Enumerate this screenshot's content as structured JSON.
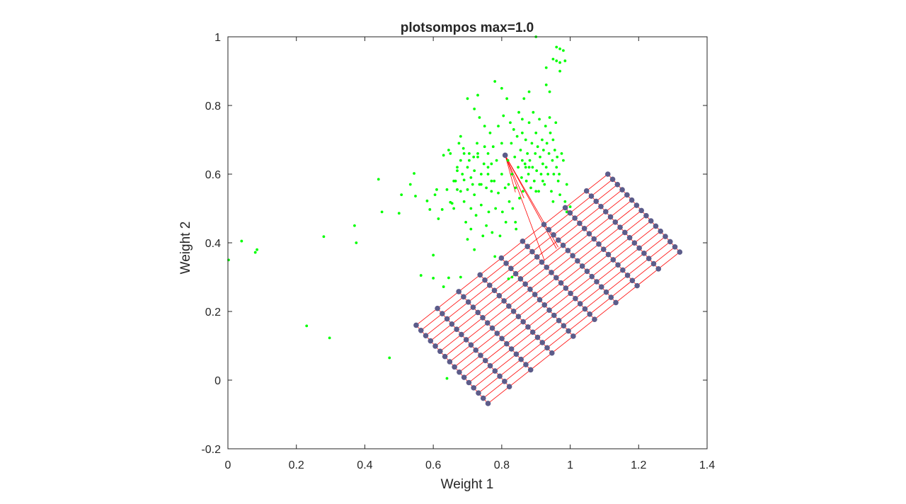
{
  "chart_data": {
    "type": "scatter",
    "title": "plotsompos max=1.0",
    "xlabel": "Weight 1",
    "ylabel": "Weight 2",
    "xlim": [
      0,
      1.4
    ],
    "ylim": [
      -0.2,
      1
    ],
    "xticks": [
      0,
      0.2,
      0.4,
      0.6,
      0.8,
      1,
      1.2,
      1.4
    ],
    "yticks": [
      -0.2,
      0,
      0.2,
      0.4,
      0.6,
      0.8,
      1
    ],
    "xtick_labels": [
      "0",
      "0.2",
      "0.4",
      "0.6",
      "0.8",
      "1",
      "1.2",
      "1.4"
    ],
    "ytick_labels": [
      "-0.2",
      "0",
      "0.2",
      "0.4",
      "0.6",
      "0.8",
      "1"
    ],
    "grid": false,
    "colors": {
      "samples": "#00ff00",
      "neurons": "#5c5c8a",
      "connections": "#ff0000",
      "axes": "#262626"
    },
    "samples": [
      [
        0.002,
        0.35
      ],
      [
        0.04,
        0.405
      ],
      [
        0.085,
        0.38
      ],
      [
        0.08,
        0.372
      ],
      [
        0.23,
        0.158
      ],
      [
        0.28,
        0.418
      ],
      [
        0.297,
        0.123
      ],
      [
        0.37,
        0.45
      ],
      [
        0.375,
        0.4
      ],
      [
        0.44,
        0.585
      ],
      [
        0.45,
        0.49
      ],
      [
        0.472,
        0.065
      ],
      [
        0.5,
        0.486
      ],
      [
        0.507,
        0.54
      ],
      [
        0.533,
        0.57
      ],
      [
        0.544,
        0.602
      ],
      [
        0.548,
        0.536
      ],
      [
        0.564,
        0.305
      ],
      [
        0.582,
        0.522
      ],
      [
        0.59,
        0.497
      ],
      [
        0.6,
        0.364
      ],
      [
        0.605,
        0.54
      ],
      [
        0.6,
        0.297
      ],
      [
        0.61,
        0.555
      ],
      [
        0.615,
        0.47
      ],
      [
        0.626,
        0.497
      ],
      [
        0.63,
        0.655
      ],
      [
        0.63,
        0.272
      ],
      [
        0.64,
        0.555
      ],
      [
        0.645,
        0.67
      ],
      [
        0.645,
        0.298
      ],
      [
        0.65,
        0.518
      ],
      [
        0.655,
        0.515
      ],
      [
        0.66,
        0.5
      ],
      [
        0.665,
        0.58
      ],
      [
        0.67,
        0.62
      ],
      [
        0.67,
        0.555
      ],
      [
        0.675,
        0.69
      ],
      [
        0.68,
        0.64
      ],
      [
        0.68,
        0.55
      ],
      [
        0.68,
        0.3
      ],
      [
        0.685,
        0.6
      ],
      [
        0.688,
        0.675
      ],
      [
        0.69,
        0.52
      ],
      [
        0.69,
        0.583
      ],
      [
        0.695,
        0.46
      ],
      [
        0.7,
        0.62
      ],
      [
        0.7,
        0.555
      ],
      [
        0.705,
        0.66
      ],
      [
        0.705,
        0.64
      ],
      [
        0.71,
        0.59
      ],
      [
        0.71,
        0.5
      ],
      [
        0.71,
        0.44
      ],
      [
        0.715,
        0.57
      ],
      [
        0.718,
        0.65
      ],
      [
        0.72,
        0.61
      ],
      [
        0.72,
        0.54
      ],
      [
        0.725,
        0.48
      ],
      [
        0.728,
        0.69
      ],
      [
        0.73,
        0.83
      ],
      [
        0.73,
        0.65
      ],
      [
        0.735,
        0.765
      ],
      [
        0.735,
        0.57
      ],
      [
        0.74,
        0.6
      ],
      [
        0.74,
        0.51
      ],
      [
        0.745,
        0.42
      ],
      [
        0.748,
        0.63
      ],
      [
        0.75,
        0.74
      ],
      [
        0.75,
        0.68
      ],
      [
        0.755,
        0.56
      ],
      [
        0.755,
        0.45
      ],
      [
        0.76,
        0.66
      ],
      [
        0.76,
        0.6
      ],
      [
        0.762,
        0.49
      ],
      [
        0.766,
        0.72
      ],
      [
        0.77,
        0.63
      ],
      [
        0.77,
        0.55
      ],
      [
        0.772,
        0.43
      ],
      [
        0.775,
        0.68
      ],
      [
        0.778,
        0.58
      ],
      [
        0.78,
        0.87
      ],
      [
        0.782,
        0.5
      ],
      [
        0.785,
        0.64
      ],
      [
        0.79,
        0.74
      ],
      [
        0.79,
        0.545
      ],
      [
        0.795,
        0.42
      ],
      [
        0.8,
        0.85
      ],
      [
        0.8,
        0.69
      ],
      [
        0.8,
        0.6
      ],
      [
        0.802,
        0.49
      ],
      [
        0.805,
        0.77
      ],
      [
        0.81,
        0.56
      ],
      [
        0.812,
        0.46
      ],
      [
        0.815,
        0.82
      ],
      [
        0.818,
        0.64
      ],
      [
        0.82,
        0.57
      ],
      [
        0.822,
        0.52
      ],
      [
        0.825,
        0.75
      ],
      [
        0.828,
        0.69
      ],
      [
        0.83,
        0.6
      ],
      [
        0.832,
        0.5
      ],
      [
        0.835,
        0.73
      ],
      [
        0.838,
        0.65
      ],
      [
        0.84,
        0.56
      ],
      [
        0.842,
        0.44
      ],
      [
        0.845,
        0.71
      ],
      [
        0.848,
        0.62
      ],
      [
        0.85,
        0.78
      ],
      [
        0.852,
        0.53
      ],
      [
        0.855,
        0.67
      ],
      [
        0.858,
        0.59
      ],
      [
        0.86,
        0.72
      ],
      [
        0.862,
        0.55
      ],
      [
        0.865,
        0.82
      ],
      [
        0.868,
        0.63
      ],
      [
        0.87,
        0.7
      ],
      [
        0.872,
        0.58
      ],
      [
        0.875,
        0.66
      ],
      [
        0.878,
        0.6
      ],
      [
        0.88,
        0.75
      ],
      [
        0.882,
        0.64
      ],
      [
        0.885,
        0.56
      ],
      [
        0.888,
        0.69
      ],
      [
        0.89,
        0.62
      ],
      [
        0.892,
        0.78
      ],
      [
        0.895,
        0.58
      ],
      [
        0.898,
        0.66
      ],
      [
        0.9,
        0.72
      ],
      [
        0.902,
        0.61
      ],
      [
        0.905,
        0.68
      ],
      [
        0.908,
        0.55
      ],
      [
        0.91,
        0.76
      ],
      [
        0.912,
        0.65
      ],
      [
        0.915,
        0.6
      ],
      [
        0.918,
        0.7
      ],
      [
        0.92,
        0.63
      ],
      [
        0.922,
        0.67
      ],
      [
        0.925,
        0.57
      ],
      [
        0.928,
        0.74
      ],
      [
        0.93,
        0.62
      ],
      [
        0.932,
        0.69
      ],
      [
        0.935,
        0.6
      ],
      [
        0.938,
        0.66
      ],
      [
        0.94,
        0.84
      ],
      [
        0.942,
        0.72
      ],
      [
        0.945,
        0.55
      ],
      [
        0.948,
        0.64
      ],
      [
        0.95,
        0.7
      ],
      [
        0.952,
        0.6
      ],
      [
        0.955,
        0.67
      ],
      [
        0.958,
        0.75
      ],
      [
        0.96,
        0.62
      ],
      [
        0.962,
        0.65
      ],
      [
        0.965,
        0.58
      ],
      [
        0.968,
        0.6
      ],
      [
        0.97,
        0.9
      ],
      [
        0.975,
        0.66
      ],
      [
        0.98,
        0.64
      ],
      [
        0.985,
        0.52
      ],
      [
        0.99,
        0.57
      ],
      [
        1.0,
        0.505
      ],
      [
        0.94,
        0.765
      ],
      [
        0.93,
        0.86
      ],
      [
        0.9,
        0.55
      ],
      [
        0.96,
        0.97
      ],
      [
        0.97,
        0.965
      ],
      [
        0.96,
        0.93
      ],
      [
        0.97,
        0.925
      ],
      [
        0.98,
        0.96
      ],
      [
        0.985,
        0.93
      ],
      [
        0.95,
        0.935
      ],
      [
        0.93,
        0.91
      ],
      [
        0.9,
        1.0
      ],
      [
        0.88,
        0.84
      ],
      [
        0.86,
        0.76
      ],
      [
        0.87,
        0.62
      ],
      [
        0.84,
        0.46
      ],
      [
        0.83,
        0.3
      ],
      [
        0.82,
        0.295
      ],
      [
        0.78,
        0.36
      ],
      [
        0.77,
        0.58
      ],
      [
        0.76,
        0.62
      ],
      [
        0.74,
        0.57
      ],
      [
        0.72,
        0.38
      ],
      [
        0.7,
        0.41
      ],
      [
        0.67,
        0.61
      ],
      [
        0.66,
        0.58
      ],
      [
        0.65,
        0.66
      ],
      [
        0.64,
        0.005
      ],
      [
        0.7,
        0.82
      ],
      [
        0.72,
        0.79
      ],
      [
        0.68,
        0.71
      ],
      [
        0.69,
        0.66
      ],
      [
        0.73,
        0.66
      ],
      [
        0.86,
        0.64
      ],
      [
        0.88,
        0.62
      ],
      [
        0.92,
        0.58
      ],
      [
        0.95,
        0.52
      ],
      [
        0.97,
        0.54
      ],
      [
        0.99,
        0.49
      ]
    ],
    "neuron_grid": {
      "rows": 10,
      "cols": 16,
      "corners": {
        "row0_col0": [
          0.55,
          0.16
        ],
        "row0_col15": [
          0.76,
          -0.068
        ],
        "row9_col0": [
          1.11,
          0.6
        ],
        "row9_col15": [
          1.32,
          0.373
        ]
      }
    },
    "outlier_neuron": [
      0.81,
      0.655
    ],
    "outlier_links": [
      [
        0.84,
        0.547
      ],
      [
        0.865,
        0.53
      ],
      [
        0.96,
        0.383
      ],
      [
        0.925,
        0.348
      ],
      [
        0.965,
        0.387
      ]
    ]
  }
}
